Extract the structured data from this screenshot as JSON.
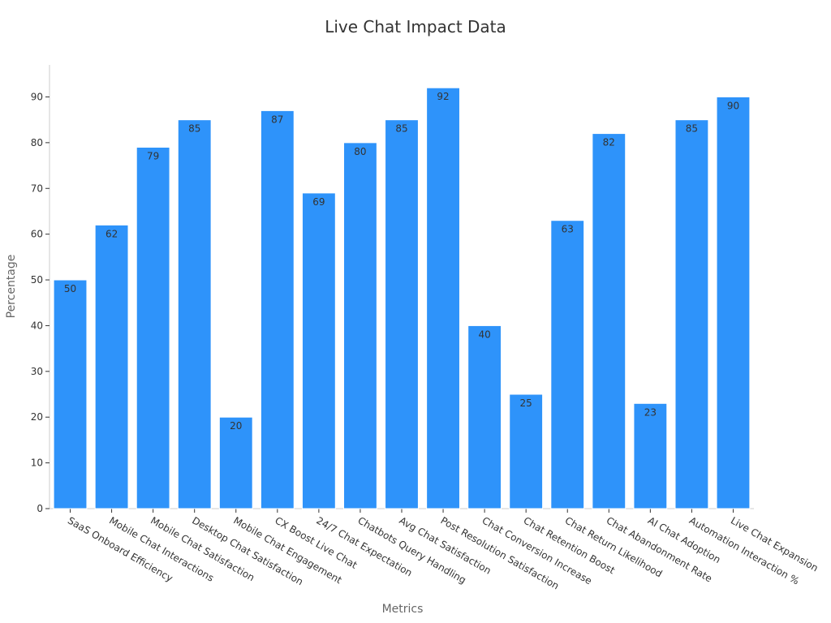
{
  "chart_data": {
    "type": "bar",
    "title": "Live Chat Impact Data",
    "xlabel": "Metrics",
    "ylabel": "Percentage",
    "ylim": [
      0,
      97
    ],
    "yticks": [
      0,
      10,
      20,
      30,
      40,
      50,
      60,
      70,
      80,
      90
    ],
    "grid": false,
    "bar_color": "#2e93fa",
    "categories": [
      "SaaS Onboard Efficiency",
      "Mobile Chat Interactions",
      "Mobile Chat Satisfaction",
      "Desktop Chat Satisfaction",
      "Mobile Chat Engagement",
      "CX Boost Live Chat",
      "24/7 Chat Expectation",
      "Chatbots Query Handling",
      "Avg Chat Satisfaction",
      "Post Resolution Satisfaction",
      "Chat Conversion Increase",
      "Chat Retention Boost",
      "Chat Return Likelihood",
      "Chat Abandonment Rate",
      "AI Chat Adoption",
      "Automation Interaction %",
      "Live Chat Expansion"
    ],
    "values": [
      50,
      62,
      79,
      85,
      20,
      87,
      69,
      80,
      85,
      92,
      40,
      25,
      63,
      82,
      23,
      85,
      90
    ]
  }
}
